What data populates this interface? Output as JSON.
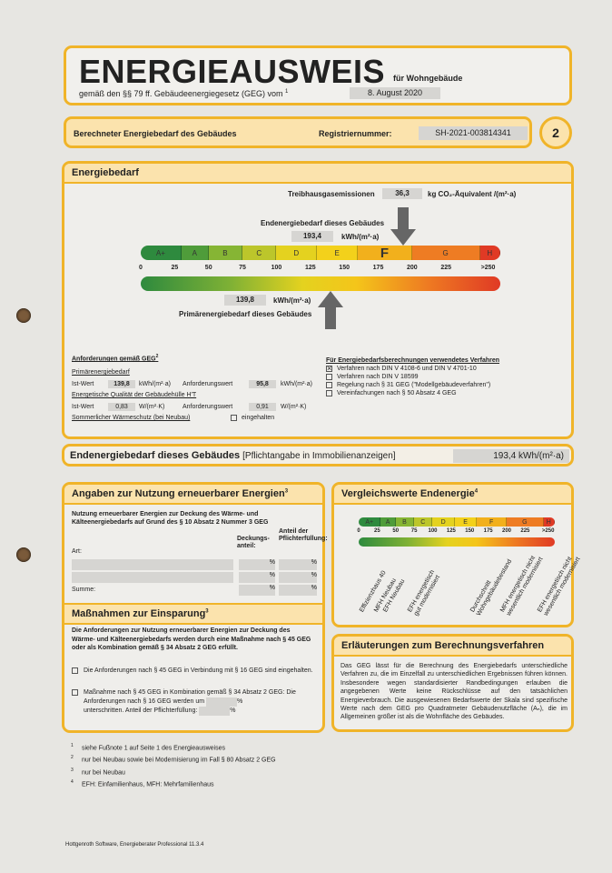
{
  "header": {
    "title": "ENERGIEAUSWEIS",
    "subtitle_right": "für Wohngebäude",
    "law_line": "gemäß den §§ 79 ff. Gebäudeenergiegesetz (GEG) vom",
    "law_sup": "1",
    "date": "8. August 2020"
  },
  "band": {
    "title": "Berechneter Energiebedarf des Gebäudes",
    "reg_label": "Registriernummer:",
    "reg_value": "SH-2021-003814341",
    "page": "2"
  },
  "energy": {
    "title": "Energiebedarf",
    "ghg_label": "Treibhausgasemissionen",
    "ghg_value": "36,3",
    "ghg_unit": "kg CO₂-Äquivalent /(m²·a)",
    "end_label": "Endenergiebedarf dieses Gebäudes",
    "end_value": "193,4",
    "end_value_num": 193.4,
    "unit": "kWh/(m²·a)",
    "primary_value": "139,8",
    "primary_value_num": 139.8,
    "primary_label": "Primärenergiebedarf dieses Gebäudes",
    "classes": [
      {
        "label": "A+",
        "from": 0,
        "to": 30,
        "color": "#2e8a3e"
      },
      {
        "label": "A",
        "from": 30,
        "to": 50,
        "color": "#4f9c3a"
      },
      {
        "label": "B",
        "from": 50,
        "to": 75,
        "color": "#86b534"
      },
      {
        "label": "C",
        "from": 75,
        "to": 100,
        "color": "#bcc62b"
      },
      {
        "label": "D",
        "from": 100,
        "to": 130,
        "color": "#e4d21f"
      },
      {
        "label": "E",
        "from": 130,
        "to": 160,
        "color": "#f3d11b"
      },
      {
        "label": "F",
        "from": 160,
        "to": 200,
        "color": "#f2b01c"
      },
      {
        "label": "G",
        "from": 200,
        "to": 250,
        "color": "#ee7c23"
      },
      {
        "label": "H",
        "from": 250,
        "to": 265,
        "color": "#e03a25"
      }
    ],
    "active_class": "F",
    "ticks": [
      {
        "v": 0,
        "t": "0"
      },
      {
        "v": 25,
        "t": "25"
      },
      {
        "v": 50,
        "t": "50"
      },
      {
        "v": 75,
        "t": "75"
      },
      {
        "v": 100,
        "t": "100"
      },
      {
        "v": 125,
        "t": "125"
      },
      {
        "v": 150,
        "t": "150"
      },
      {
        "v": 175,
        "t": "175"
      },
      {
        "v": 200,
        "t": "200"
      },
      {
        "v": 225,
        "t": "225"
      },
      {
        "v": 256,
        "t": ">250"
      }
    ]
  },
  "requirements": {
    "title": "Anforderungen gemäß GEG",
    "title_sup": "2",
    "primary_heading": "Primärenergiebedarf",
    "ist": "Ist-Wert",
    "ist_primary": "139,8",
    "unit_primary": "kWh/(m²·a)",
    "anf": "Anforderungswert",
    "anf_primary": "95,8",
    "envelope_heading": "Energetische Qualität der Gebäudehülle H'T",
    "ist_env": "0,83",
    "unit_env": "W/(m²·K)",
    "anf_env": "0,91",
    "summer": "Sommerlicher Wärmeschutz (bei Neubau)",
    "kept": "eingehalten"
  },
  "methods": {
    "title": "Für Energiebedarfsberechnungen verwendetes Verfahren",
    "items": [
      {
        "label": "Verfahren nach DIN V 4108-6 und DIN V 4701-10",
        "checked": true
      },
      {
        "label": "Verfahren nach DIN V 18599",
        "checked": false
      },
      {
        "label": "Regelung nach § 31 GEG (\"Modellgebäudeverfahren\")",
        "checked": false
      },
      {
        "label": "Vereinfachungen nach § 50 Absatz 4 GEG",
        "checked": false
      }
    ]
  },
  "end_row": {
    "label": "Endenergiebedarf dieses Gebäudes",
    "note": "[Pflichtangabe in Immobilienanzeigen]",
    "value": "193,4 kWh/(m²·a)"
  },
  "renewable": {
    "title": "Angaben zur Nutzung erneuerbarer Energien",
    "sup": "3",
    "intro": "Nutzung erneuerbarer Energien zur Deckung des Wärme- und Kälteenergiebedarfs auf Grund des § 10 Absatz 2 Nummer 3 GEG",
    "col_art": "Art:",
    "col_share": "Deckungs-anteil:",
    "col_duty": "Anteil der Pflichterfüllung:",
    "pct": "%",
    "sum": "Summe:"
  },
  "savings": {
    "title": "Maßnahmen zur Einsparung",
    "sup": "3",
    "intro": "Die Anforderungen zur Nutzung erneuerbarer Energien zur Deckung des Wärme- und Kälteenergiebedarfs werden durch eine Maßnahme nach § 45 GEG oder als Kombination gemäß § 34 Absatz 2 GEG erfüllt.",
    "opt1": "Die Anforderungen nach § 45 GEG in Verbindung mit § 16 GEG sind eingehalten.",
    "opt2a": "Maßnahme nach § 45 GEG in Kombination gemäß § 34 Absatz 2 GEG: Die Anforderungen nach § 16 GEG werden um",
    "opt2b": "unterschritten. Anteil der Pflichterfüllung:",
    "pct": "%"
  },
  "comparison": {
    "title": "Vergleichswerte Endenergie",
    "sup": "4",
    "refs": [
      {
        "v": 10,
        "t": "Effizienzhaus 40"
      },
      {
        "v": 30,
        "t": "MFH Neubau"
      },
      {
        "v": 42,
        "t": "EFH Neubau"
      },
      {
        "v": 75,
        "t": "EFH energetisch\ngut modernisiert"
      },
      {
        "v": 160,
        "t": "Durchschnitt\nWohngebäudebestand"
      },
      {
        "v": 200,
        "t": "MFH energetisch nicht\nwesentlich modernisiert"
      },
      {
        "v": 250,
        "t": "EFH energetisch nicht\nwesentlich modernisiert"
      }
    ]
  },
  "explanation": {
    "title": "Erläuterungen zum Berechnungsverfahren",
    "text": "Das GEG lässt für die Berechnung des Energiebedarfs unterschiedliche Verfahren zu, die im Einzelfall zu unterschiedlichen Ergebnissen führen können. Insbesondere wegen standardisierter Randbedingungen erlauben die angegebenen Werte keine Rückschlüsse auf den tatsächlichen Energieverbrauch. Die ausgewiesenen Bedarfswerte der Skala sind spezifische Werte nach dem GEG pro Quadratmeter Gebäudenutzfläche (Aₙ), die im Allgemeinen größer ist als die Wohnfläche des Gebäudes."
  },
  "footnotes": [
    {
      "n": "1",
      "t": "siehe Fußnote 1 auf Seite 1 des Energieausweises"
    },
    {
      "n": "2",
      "t": "nur bei Neubau sowie bei Modernisierung im Fall § 80 Absatz 2 GEG"
    },
    {
      "n": "3",
      "t": "nur bei Neubau"
    },
    {
      "n": "4",
      "t": "EFH: Einfamilienhaus, MFH: Mehrfamilienhaus"
    }
  ],
  "software": "Hottgenroth Software, Energieberater Professional 11.3.4"
}
